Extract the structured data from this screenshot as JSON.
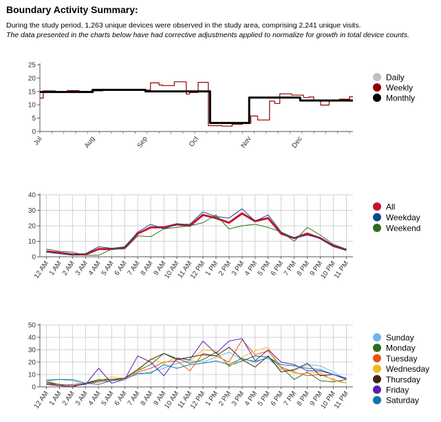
{
  "header": {
    "title": "Boundary Activity Summary:",
    "intro": "During the study period, 1,263 unique devices were observed in the study area, comprising 2,241 unique visits.",
    "note": "The data presented in the charts below have had corrective adjustments applied to normalize for growth in total device counts."
  },
  "chart_data": [
    {
      "type": "line",
      "ylim": [
        0,
        25
      ],
      "yticks": [
        0,
        5,
        10,
        15,
        20,
        25
      ],
      "xrange": [
        0,
        184
      ],
      "xticks": [
        {
          "label": "Jul",
          "x": 0
        },
        {
          "label": "Aug",
          "x": 31
        },
        {
          "label": "Sep",
          "x": 62
        },
        {
          "label": "Oct",
          "x": 92
        },
        {
          "label": "Nov",
          "x": 123
        },
        {
          "label": "Dec",
          "x": 153
        }
      ],
      "grid": false,
      "legend": "right",
      "series": [
        {
          "name": "Daily",
          "color": "#c0c0c0",
          "step": true,
          "width": 0,
          "points": []
        },
        {
          "name": "Weekly",
          "color": "#8b0000",
          "step": true,
          "width": 1.2,
          "points": [
            [
              0,
              12.5
            ],
            [
              2,
              15.2
            ],
            [
              9,
              14.8
            ],
            [
              16,
              15.3
            ],
            [
              23,
              15.0
            ],
            [
              30,
              15.2
            ],
            [
              37,
              15.6
            ],
            [
              44,
              15.4
            ],
            [
              51,
              15.6
            ],
            [
              58,
              15.5
            ],
            [
              65,
              18.2
            ],
            [
              70,
              17.4
            ],
            [
              72,
              17.2
            ],
            [
              79,
              18.6
            ],
            [
              86,
              14.0
            ],
            [
              88,
              14.6
            ],
            [
              93,
              18.4
            ],
            [
              99,
              2.2
            ],
            [
              105,
              2.2
            ],
            [
              107,
              2.0
            ],
            [
              113,
              2.7
            ],
            [
              119,
              3.1
            ],
            [
              124,
              5.8
            ],
            [
              128,
              4.3
            ],
            [
              130,
              4.3
            ],
            [
              135,
              11.4
            ],
            [
              138,
              10.5
            ],
            [
              141,
              14.1
            ],
            [
              148,
              13.6
            ],
            [
              155,
              12.7
            ],
            [
              158,
              12.9
            ],
            [
              161,
              11.8
            ],
            [
              165,
              9.9
            ],
            [
              170,
              11.8
            ],
            [
              176,
              12.1
            ],
            [
              182,
              13.0
            ],
            [
              184,
              13.0
            ]
          ]
        },
        {
          "name": "Monthly",
          "color": "#000000",
          "step": true,
          "width": 3,
          "points": [
            [
              0,
              14.8
            ],
            [
              31,
              15.6
            ],
            [
              62,
              15.0
            ],
            [
              92,
              15.0
            ],
            [
              100,
              3.2
            ],
            [
              123,
              12.7
            ],
            [
              153,
              11.6
            ],
            [
              184,
              11.6
            ]
          ]
        }
      ]
    },
    {
      "type": "line",
      "ylim": [
        0,
        40
      ],
      "yticks": [
        0,
        10,
        20,
        30,
        40
      ],
      "categories": [
        "12 AM",
        "1 AM",
        "2 AM",
        "3 AM",
        "4 AM",
        "5 AM",
        "6 AM",
        "7 AM",
        "8 AM",
        "9 AM",
        "10 AM",
        "11 AM",
        "12 PM",
        "1 PM",
        "2 PM",
        "3 PM",
        "4 PM",
        "5 PM",
        "6 PM",
        "7 PM",
        "8 PM",
        "9 PM",
        "10 PM",
        "11 PM"
      ],
      "grid": true,
      "legend": "right",
      "series": [
        {
          "name": "All",
          "color": "#c8102e",
          "width": 3,
          "values": [
            3.5,
            2.5,
            1.5,
            1.5,
            5,
            5,
            6,
            15,
            19,
            19,
            21,
            20,
            27,
            25,
            22,
            28,
            23,
            25,
            15,
            12,
            15,
            12,
            7,
            4.5
          ]
        },
        {
          "name": "Weekday",
          "color": "#0c4c8a",
          "width": 1,
          "values": [
            3,
            2,
            1,
            2,
            6.5,
            5.5,
            6,
            16,
            21,
            18,
            21,
            21,
            29,
            26,
            25,
            31,
            23,
            27,
            16,
            12,
            14,
            12,
            7,
            4.5
          ]
        },
        {
          "name": "Weekend",
          "color": "#2e6d1f",
          "width": 1,
          "values": [
            5,
            3.5,
            3,
            1,
            1,
            5,
            5,
            13.5,
            13,
            18,
            19,
            20,
            22,
            27,
            18,
            20,
            21,
            19,
            16,
            10,
            19,
            14,
            8,
            5
          ]
        }
      ]
    },
    {
      "type": "line",
      "ylim": [
        0,
        50
      ],
      "yticks": [
        0,
        10,
        20,
        30,
        40,
        50
      ],
      "categories": [
        "12 AM",
        "1 AM",
        "2 AM",
        "3 AM",
        "4 AM",
        "5 AM",
        "6 AM",
        "7 AM",
        "8 AM",
        "9 AM",
        "10 AM",
        "11 AM",
        "12 PM",
        "1 PM",
        "2 PM",
        "3 PM",
        "4 PM",
        "5 PM",
        "6 PM",
        "7 PM",
        "8 PM",
        "9 PM",
        "10 PM",
        "11 PM"
      ],
      "grid": true,
      "legend": "right",
      "series": [
        {
          "name": "Sunday",
          "color": "#6cb4ee",
          "width": 1,
          "values": [
            6,
            6,
            5,
            2,
            4,
            5,
            7,
            10,
            12,
            15,
            19,
            21,
            20,
            24,
            28,
            22,
            21,
            23,
            14,
            13,
            18,
            17,
            12,
            6
          ]
        },
        {
          "name": "Monday",
          "color": "#2e6d1f",
          "width": 1,
          "values": [
            4,
            2,
            1,
            3,
            6,
            6,
            7,
            13,
            18,
            27,
            23,
            19,
            22,
            28,
            17,
            21,
            25,
            24,
            16,
            6,
            12,
            5,
            4,
            6
          ]
        },
        {
          "name": "Tuesday",
          "color": "#e8531b",
          "width": 1,
          "values": [
            3,
            1,
            2,
            3,
            4,
            5,
            7,
            12,
            15,
            20,
            21,
            13,
            27,
            25,
            20,
            38,
            26,
            29,
            16,
            12,
            9,
            10,
            6,
            3
          ]
        },
        {
          "name": "Wednesday",
          "color": "#f2b91c",
          "width": 1,
          "values": [
            5,
            2,
            1,
            3,
            5,
            8,
            7,
            13,
            23,
            19,
            24,
            21,
            30,
            29,
            16,
            24,
            29,
            32,
            15,
            11,
            11,
            12,
            5,
            3
          ]
        },
        {
          "name": "Thursday",
          "color": "#3a2a0c",
          "width": 1,
          "values": [
            2,
            1,
            0,
            3,
            5,
            6,
            7,
            14,
            22,
            27,
            22,
            24,
            26,
            25,
            32,
            22,
            16,
            25,
            12,
            14,
            19,
            9,
            10,
            6
          ]
        },
        {
          "name": "Friday",
          "color": "#5a1fb0",
          "width": 1,
          "values": [
            3,
            2,
            1,
            2,
            15,
            3,
            6,
            25,
            20,
            9,
            23,
            22,
            37,
            27,
            37,
            39,
            21,
            30,
            20,
            18,
            13,
            13,
            10,
            7
          ]
        },
        {
          "name": "Saturday",
          "color": "#1278a8",
          "width": 1,
          "values": [
            5,
            6,
            6,
            3,
            2,
            5,
            6,
            11,
            11,
            18,
            15,
            18,
            19,
            21,
            18,
            23,
            20,
            24,
            18,
            17,
            15,
            14,
            10,
            6
          ]
        }
      ]
    }
  ]
}
